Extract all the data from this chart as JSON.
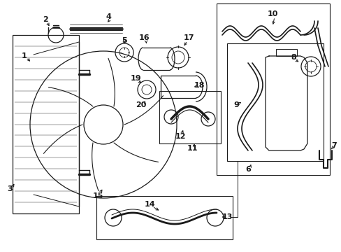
{
  "bg_color": "#ffffff",
  "lc": "#1a1a1a",
  "figsize": [
    4.89,
    3.6
  ],
  "dpi": 100,
  "lw": 0.9
}
